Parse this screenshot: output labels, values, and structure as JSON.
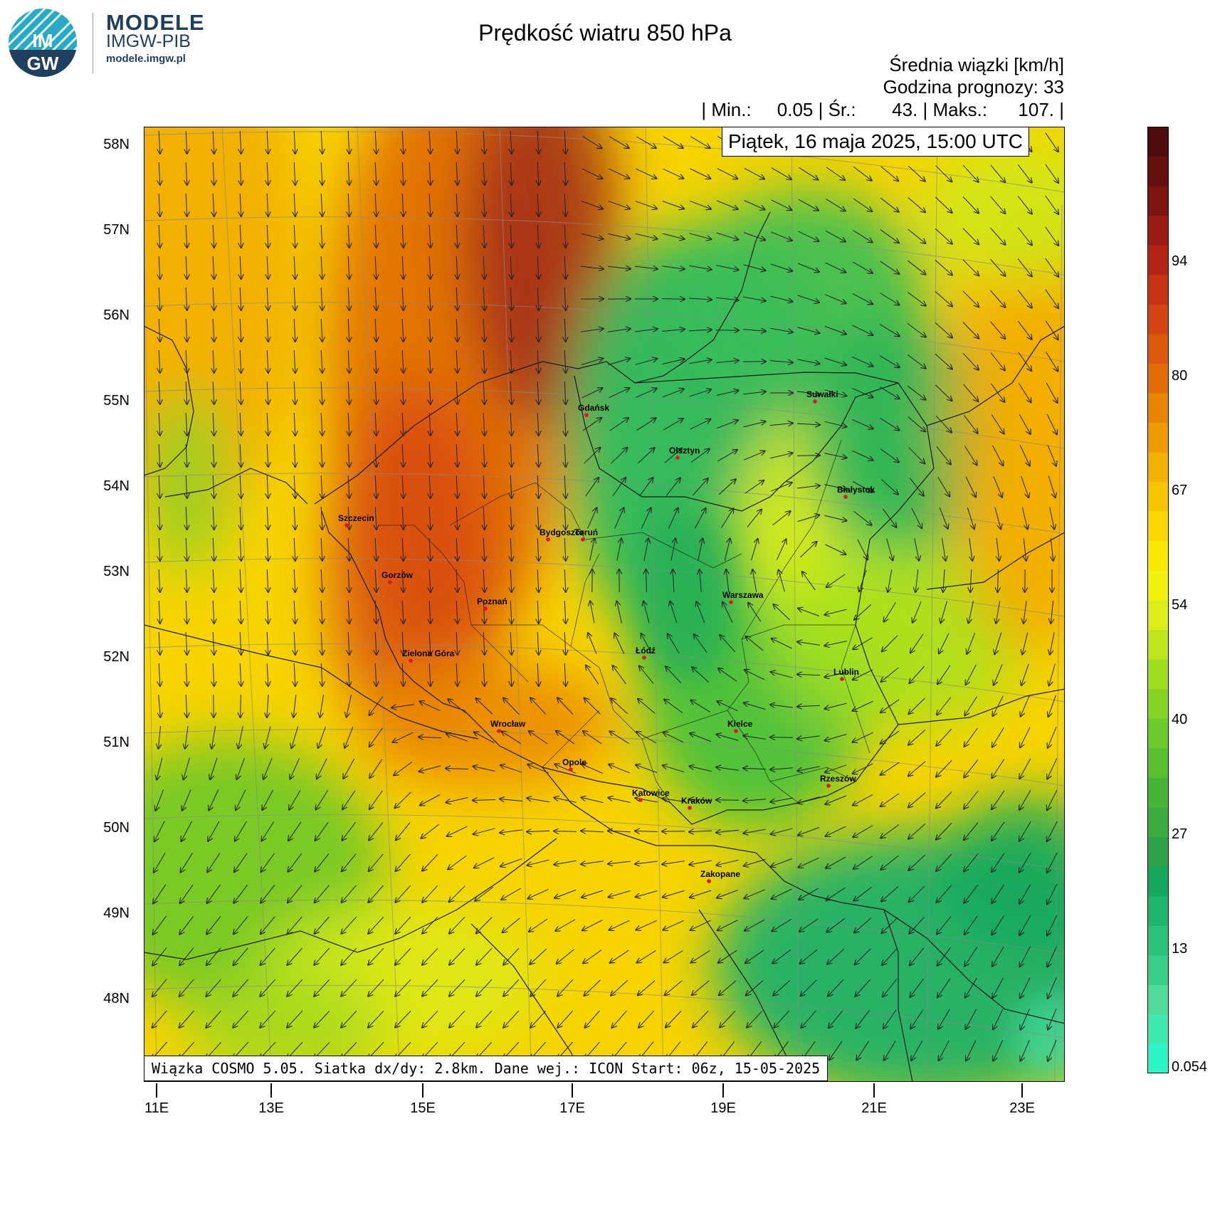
{
  "header": {
    "logo": {
      "mark": "IMGW",
      "title": "MODELE",
      "subtitle": "IMGW-PIB",
      "url": "modele.imgw.pl"
    },
    "title": "Prędkość wiatru 850 hPa",
    "unit_line": "Średnia wiązki [km/h]",
    "forecast_hour_line": "Godzina prognozy: 33",
    "stats_line": "| Min.:     0.05 | Śr.:       43. | Maks.:      107. |",
    "date": "Piątek, 16 maja 2025, 15:00 UTC",
    "source": "Wiązka COSMO 5.05. Siatka dx/dy: 2.8km. Dane wej.: ICON Start: 06z, 15-05-2025"
  },
  "axes": {
    "lat_labels": [
      "58N",
      "57N",
      "56N",
      "55N",
      "54N",
      "53N",
      "52N",
      "51N",
      "50N",
      "49N",
      "48N"
    ],
    "lon_labels": [
      "11E",
      "13E",
      "15E",
      "17E",
      "19E",
      "21E",
      "23E"
    ]
  },
  "colorbar": {
    "labels": [
      "94",
      "80",
      "67",
      "54",
      "40",
      "27",
      "13",
      "0.054"
    ],
    "colors": [
      "#2ef5c8",
      "#3fe8b0",
      "#4fdc9a",
      "#38cf88",
      "#2cc27a",
      "#1fb56a",
      "#14a85c",
      "#2ea24a",
      "#3aab3e",
      "#46b536",
      "#56c02e",
      "#6ccb28",
      "#86d524",
      "#a2de20",
      "#bfe61c",
      "#dbee18",
      "#f2f20e",
      "#fbe800",
      "#fad800",
      "#f8c600",
      "#f4b200",
      "#ef9c00",
      "#e98400",
      "#e36e08",
      "#dc580c",
      "#d44410",
      "#c63212",
      "#b42414",
      "#9a1a14",
      "#7e1410",
      "#66100e",
      "#4e0c0a"
    ]
  },
  "cities": [
    {
      "name": "Gdańsk"
    },
    {
      "name": "Suwałki"
    },
    {
      "name": "Olsztyn"
    },
    {
      "name": "Białystok"
    },
    {
      "name": "Szczecin"
    },
    {
      "name": "Bydgoszcz"
    },
    {
      "name": "Toruń"
    },
    {
      "name": "Gorzów"
    },
    {
      "name": "Poznań"
    },
    {
      "name": "Warszawa"
    },
    {
      "name": "Łódź"
    },
    {
      "name": "Zielona Góra"
    },
    {
      "name": "Lublin"
    },
    {
      "name": "Wrocław"
    },
    {
      "name": "Kielce"
    },
    {
      "name": "Opole"
    },
    {
      "name": "Rzeszów"
    },
    {
      "name": "Katowice"
    },
    {
      "name": "Kraków"
    },
    {
      "name": "Zakopane"
    }
  ]
}
